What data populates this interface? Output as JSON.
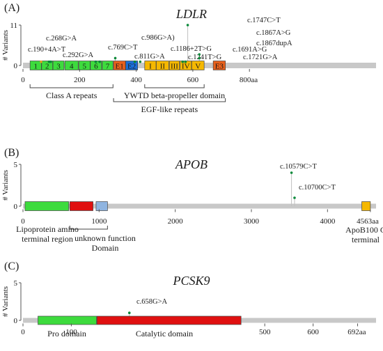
{
  "colors": {
    "backbone": "#c8c8c8",
    "green": "#3ddb3d",
    "red": "#e01010",
    "orange": "#e8601c",
    "blue": "#1a6fd8",
    "lightblue": "#8fb4e0",
    "yellow": "#f5b800",
    "stem": "#c0c0c0",
    "dot": "#0a8a3a",
    "dot_alt": "#e8a020"
  },
  "panels": [
    {
      "id": "ldlr",
      "panel_label": "(A)",
      "gene": "LDLR",
      "y_axis_title": "# Variants",
      "y_ticks": [
        {
          "value": 11,
          "label": "11"
        },
        {
          "value": 0,
          "label": "0"
        }
      ],
      "y_max": 11,
      "aa_length": 860,
      "x_ticks": [
        {
          "value": 0,
          "label": "0"
        },
        {
          "value": 200,
          "label": "200"
        },
        {
          "value": 400,
          "label": "400"
        },
        {
          "value": 600,
          "label": "600"
        },
        {
          "value": 800,
          "label": "800aa"
        }
      ],
      "domains": [
        {
          "start": 25,
          "end": 65,
          "color": "green",
          "label": "1"
        },
        {
          "start": 66,
          "end": 105,
          "color": "green",
          "label": "2"
        },
        {
          "start": 106,
          "end": 145,
          "color": "green",
          "label": "3"
        },
        {
          "start": 148,
          "end": 195,
          "color": "green",
          "label": "4"
        },
        {
          "start": 197,
          "end": 237,
          "color": "green",
          "label": "5"
        },
        {
          "start": 238,
          "end": 278,
          "color": "green",
          "label": "6"
        },
        {
          "start": 280,
          "end": 318,
          "color": "green",
          "label": "7"
        },
        {
          "start": 320,
          "end": 362,
          "color": "orange",
          "label": "E1"
        },
        {
          "start": 363,
          "end": 405,
          "color": "blue",
          "label": "E2"
        },
        {
          "start": 430,
          "end": 470,
          "color": "yellow",
          "label": "I"
        },
        {
          "start": 471,
          "end": 515,
          "color": "yellow",
          "label": "II"
        },
        {
          "start": 517,
          "end": 553,
          "color": "yellow",
          "label": "III"
        },
        {
          "start": 555,
          "end": 595,
          "color": "yellow",
          "label": "IV"
        },
        {
          "start": 596,
          "end": 640,
          "color": "yellow",
          "label": "V"
        },
        {
          "start": 672,
          "end": 715,
          "color": "orange",
          "label": "E3"
        }
      ],
      "variants": [
        {
          "pos": 92,
          "height": 1,
          "label": "c.268G>A",
          "color": "dot",
          "label_pos": {
            "x": 66,
            "y": 58
          }
        },
        {
          "pos": 64,
          "height": 1,
          "label": "c.190+4A>T",
          "color": "dot_alt",
          "label_pos": {
            "x": 40,
            "y": 74
          }
        },
        {
          "pos": 98,
          "height": 1,
          "label": "c.292G>A",
          "color": "dot",
          "label_pos": {
            "x": 90,
            "y": 82
          }
        },
        {
          "pos": 257,
          "height": 1,
          "label": "c.769C>T",
          "color": "dot",
          "label_pos": {
            "x": 155,
            "y": 71
          }
        },
        {
          "pos": 326,
          "height": 2,
          "label": "c.986G>A)",
          "color": "dot",
          "label_pos": {
            "x": 203,
            "y": 57
          }
        },
        {
          "pos": 271,
          "height": 1,
          "label": "c.811G>A",
          "color": "dot",
          "label_pos": {
            "x": 193,
            "y": 84
          }
        },
        {
          "pos": 395,
          "height": 1,
          "label": "c.1186+2T>G",
          "color": "dot",
          "label_pos": {
            "x": 245,
            "y": 73
          }
        },
        {
          "pos": 414,
          "height": 1,
          "label": "c.1241T>G",
          "color": "dot",
          "label_pos": {
            "x": 270,
            "y": 85
          }
        },
        {
          "pos": 582,
          "height": 11,
          "label": "c.1747C>T",
          "color": "dot",
          "label_pos": {
            "x": 355,
            "y": 32
          }
        },
        {
          "pos": 623,
          "height": 2,
          "label": "c.1867A>G",
          "color": "dot",
          "label_pos": {
            "x": 368,
            "y": 50
          }
        },
        {
          "pos": 623,
          "height": 3,
          "label": "c.1867dupA",
          "color": "dot",
          "label_pos": {
            "x": 368,
            "y": 65
          }
        },
        {
          "pos": 564,
          "height": 1,
          "label": "c.1691A>G",
          "color": "dot",
          "label_pos": {
            "x": 334,
            "y": 74
          }
        },
        {
          "pos": 574,
          "height": 1,
          "label": "c.1721G>A",
          "color": "dot",
          "label_pos": {
            "x": 349,
            "y": 85
          }
        }
      ],
      "brackets": [
        {
          "start": 25,
          "end": 318,
          "side": "below",
          "level": 1,
          "label": "Class A repeats"
        },
        {
          "start": 430,
          "end": 640,
          "side": "below",
          "level": 1,
          "label": "YWTD beta-propeller domain"
        },
        {
          "start": 320,
          "end": 715,
          "side": "below",
          "level": 2,
          "label": "EGF-like repeats"
        }
      ],
      "domain_labels": []
    },
    {
      "id": "apob",
      "panel_label": "(B)",
      "gene": "APOB",
      "y_axis_title": "# Variants",
      "y_ticks": [
        {
          "value": 5,
          "label": "5"
        },
        {
          "value": 0,
          "label": "0"
        }
      ],
      "y_max": 5,
      "aa_length": 4563,
      "x_ticks": [
        {
          "value": 0,
          "label": "0"
        },
        {
          "value": 1000,
          "label": "1000"
        },
        {
          "value": 2000,
          "label": "2000"
        },
        {
          "value": 3000,
          "label": "3000"
        },
        {
          "value": 4000,
          "label": "4000"
        },
        {
          "value": 4563,
          "label": "4563aa"
        }
      ],
      "domains": [
        {
          "start": 27,
          "end": 600,
          "color": "green",
          "label": ""
        },
        {
          "start": 615,
          "end": 920,
          "color": "red",
          "label": ""
        },
        {
          "start": 960,
          "end": 1110,
          "color": "lightblue",
          "label": ""
        },
        {
          "start": 4450,
          "end": 4563,
          "color": "yellow",
          "label": ""
        }
      ],
      "variants": [
        {
          "pos": 3527,
          "height": 4,
          "label": "c.10579C>T",
          "color": "dot",
          "label_pos": {
            "x": 402,
            "y": 242
          }
        },
        {
          "pos": 3567,
          "height": 1,
          "label": "c.10700C>T",
          "color": "dot",
          "label_pos": {
            "x": 429,
            "y": 272
          }
        }
      ],
      "brackets": [
        {
          "start": 615,
          "end": 1110,
          "side": "below",
          "level": 1,
          "label": ""
        }
      ],
      "domain_labels": [
        {
          "lines": [
            "Lipoprotein amino",
            "terminal region"
          ],
          "x": 68,
          "y": 333
        },
        {
          "lines": [
            "unknown function",
            "Domain"
          ],
          "x": 151,
          "y": 346
        },
        {
          "lines": [
            "ApoB100 C",
            "terminal"
          ],
          "x": 525,
          "y": 334
        }
      ]
    },
    {
      "id": "pcsk9",
      "panel_label": "(C)",
      "gene": "PCSK9",
      "y_axis_title": "# Variants",
      "y_ticks": [
        {
          "value": 5,
          "label": "5"
        },
        {
          "value": 0,
          "label": "0"
        }
      ],
      "y_max": 5,
      "aa_length": 692,
      "x_ticks": [
        {
          "value": 0,
          "label": "0"
        },
        {
          "value": 100,
          "label": "100"
        },
        {
          "value": 500,
          "label": "500"
        },
        {
          "value": 600,
          "label": "600"
        },
        {
          "value": 692,
          "label": "692aa"
        }
      ],
      "domains": [
        {
          "start": 31,
          "end": 152,
          "color": "green",
          "label": ""
        },
        {
          "start": 153,
          "end": 451,
          "color": "red",
          "label": ""
        }
      ],
      "variants": [
        {
          "pos": 220,
          "height": 1,
          "label": "c.658G>A",
          "color": "dot",
          "label_pos": {
            "x": 196,
            "y": 436
          }
        }
      ],
      "brackets": [],
      "domain_labels": [
        {
          "lines": [
            "Pro domain"
          ],
          "x": 96,
          "y": 483
        },
        {
          "lines": [
            "Catalytic domain"
          ],
          "x": 236,
          "y": 483
        }
      ]
    }
  ]
}
